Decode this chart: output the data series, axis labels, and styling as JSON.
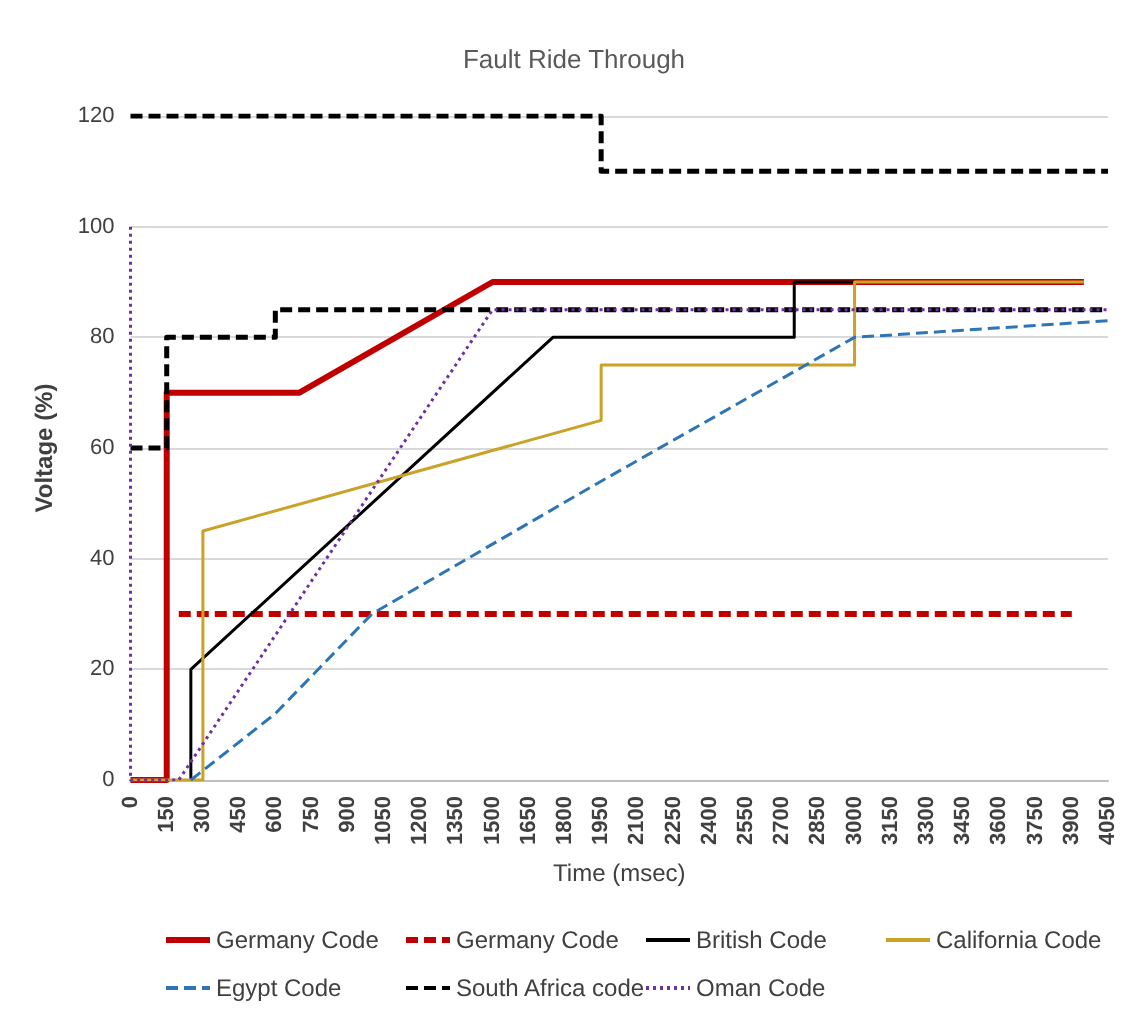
{
  "chart_data": {
    "type": "line",
    "title": "Fault Ride Through",
    "xlabel": "Time (msec)",
    "ylabel": "Voltage (%)",
    "xlim": [
      0,
      4050
    ],
    "xticks": [
      0,
      150,
      300,
      450,
      600,
      750,
      900,
      1050,
      1200,
      1350,
      1500,
      1650,
      1800,
      1950,
      2100,
      2250,
      2400,
      2550,
      2700,
      2850,
      3000,
      3150,
      3300,
      3450,
      3600,
      3750,
      3900,
      4050
    ],
    "ylim": [
      0,
      120
    ],
    "yticks": [
      0,
      20,
      40,
      60,
      80,
      100,
      120
    ],
    "grid": "y",
    "legend": "bottom",
    "marker": "none",
    "series": [
      {
        "name": "Germany Code",
        "color": "#c00000",
        "line_style": "solid",
        "x": [
          0,
          150,
          150,
          700,
          1500,
          3950
        ],
        "values": [
          0,
          0,
          70,
          70,
          90,
          90
        ]
      },
      {
        "name": "Germany Code",
        "color": "#c00000",
        "line_style": "dashed",
        "x": [
          200,
          3900
        ],
        "values": [
          30,
          30
        ]
      },
      {
        "name": "British Code",
        "color": "#000000",
        "line_style": "solid",
        "x": [
          250,
          250,
          1750,
          2750,
          2750,
          3000
        ],
        "values": [
          0,
          20,
          80,
          80,
          90,
          90
        ]
      },
      {
        "name": "California Code",
        "color": "#c9a227",
        "line_style": "solid",
        "x": [
          0,
          300,
          300,
          1950,
          1950,
          3000,
          3000,
          3950
        ],
        "values": [
          0,
          0,
          45,
          65,
          75,
          75,
          90,
          90
        ]
      },
      {
        "name": "Egypt Code",
        "color": "#2e75b6",
        "line_style": "dashed",
        "x": [
          250,
          600,
          1000,
          1950,
          3000,
          4050
        ],
        "values": [
          0,
          12,
          30,
          54,
          80,
          83
        ]
      },
      {
        "name": "South Africa code",
        "color": "#000000",
        "line_style": "dashed",
        "x": [
          0,
          150,
          150,
          600,
          600,
          4050,
          null,
          0,
          1950,
          1950,
          4050
        ],
        "values": [
          60,
          60,
          80,
          80,
          85,
          85,
          null,
          120,
          120,
          110,
          110
        ]
      },
      {
        "name": "Oman Code",
        "color": "#7030a0",
        "line_style": "dotted",
        "x": [
          0,
          0,
          200,
          1500,
          4050
        ],
        "values": [
          100,
          0,
          0,
          85,
          85
        ]
      }
    ]
  }
}
